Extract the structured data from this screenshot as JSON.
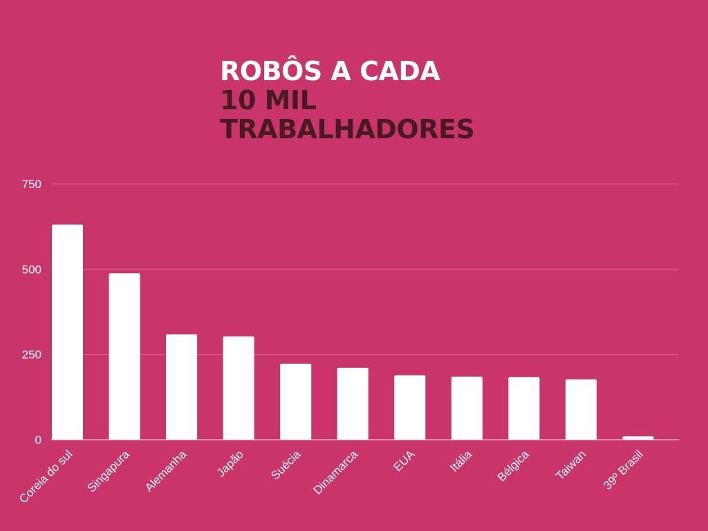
{
  "title": {
    "line1": "ROBÔS A CADA",
    "line2": "10 MIL",
    "line3": "TRABALHADORES"
  },
  "colors": {
    "background": "#c9356a",
    "bar": "#ffffff",
    "title_accent": "#4a1a22",
    "grid": "#e07fa2"
  },
  "chart_data": {
    "type": "bar",
    "title": "ROBÔS A CADA 10 MIL TRABALHADORES",
    "categories": [
      "Coreia do sul",
      "Singapura",
      "Alemanha",
      "Japão",
      "Suécia",
      "Dinamarca",
      "EUA",
      "Itália",
      "Bélgica",
      "Taiwan",
      "39º Brasil"
    ],
    "values": [
      631,
      488,
      309,
      303,
      223,
      211,
      189,
      185,
      184,
      177,
      10
    ],
    "ylim": [
      0,
      750
    ],
    "yticks": [
      0,
      250,
      500,
      750
    ],
    "xlabel": "",
    "ylabel": "",
    "grid": true,
    "legend": "none"
  }
}
